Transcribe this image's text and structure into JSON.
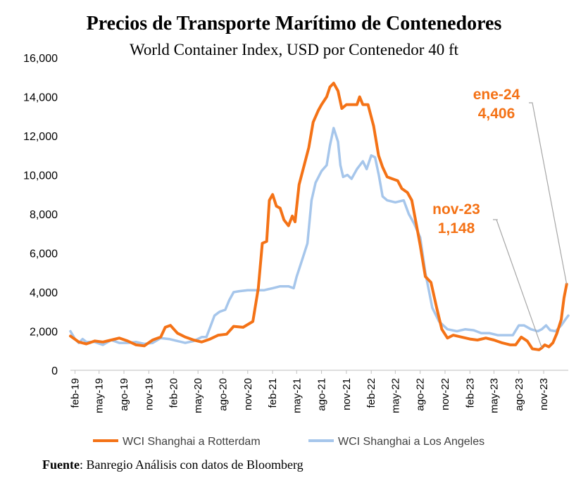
{
  "chart_data": {
    "type": "line",
    "title": "Precios de Transporte Marítimo de Contenedores",
    "subtitle": "World Container Index, USD por Contenedor 40 ft",
    "ylim": [
      0,
      16000
    ],
    "y_ticks": [
      "0",
      "2,000",
      "4,000",
      "6,000",
      "8,000",
      "10,000",
      "12,000",
      "14,000",
      "16,000"
    ],
    "x_range": [
      "2019-01-15",
      "2024-01-31"
    ],
    "x_ticks": [
      {
        "label": "feb-19",
        "date": "2019-02-01"
      },
      {
        "label": "may-19",
        "date": "2019-05-01"
      },
      {
        "label": "ago-19",
        "date": "2019-08-01"
      },
      {
        "label": "nov-19",
        "date": "2019-11-01"
      },
      {
        "label": "feb-20",
        "date": "2020-02-01"
      },
      {
        "label": "may-20",
        "date": "2020-05-01"
      },
      {
        "label": "ago-20",
        "date": "2020-08-01"
      },
      {
        "label": "nov-20",
        "date": "2020-11-01"
      },
      {
        "label": "feb-21",
        "date": "2021-02-01"
      },
      {
        "label": "may-21",
        "date": "2021-05-01"
      },
      {
        "label": "ago-21",
        "date": "2021-08-01"
      },
      {
        "label": "nov-21",
        "date": "2021-11-01"
      },
      {
        "label": "feb-22",
        "date": "2022-02-01"
      },
      {
        "label": "may-22",
        "date": "2022-05-01"
      },
      {
        "label": "ago-22",
        "date": "2022-08-01"
      },
      {
        "label": "nov-22",
        "date": "2022-11-01"
      },
      {
        "label": "feb-23",
        "date": "2023-02-01"
      },
      {
        "label": "may-23",
        "date": "2023-05-01"
      },
      {
        "label": "ago-23",
        "date": "2023-08-01"
      },
      {
        "label": "nov-23",
        "date": "2023-11-01"
      }
    ],
    "grid": false,
    "legend_position": "bottom",
    "series": [
      {
        "name": "WCI Shanghai a Rotterdam",
        "color": "#f47216",
        "points": [
          [
            "2019-01-15",
            1750
          ],
          [
            "2019-02-15",
            1450
          ],
          [
            "2019-03-15",
            1350
          ],
          [
            "2019-04-15",
            1500
          ],
          [
            "2019-05-15",
            1450
          ],
          [
            "2019-06-15",
            1550
          ],
          [
            "2019-07-15",
            1650
          ],
          [
            "2019-08-15",
            1500
          ],
          [
            "2019-09-15",
            1300
          ],
          [
            "2019-10-15",
            1250
          ],
          [
            "2019-11-15",
            1550
          ],
          [
            "2019-12-15",
            1700
          ],
          [
            "2020-01-01",
            2200
          ],
          [
            "2020-01-20",
            2300
          ],
          [
            "2020-02-15",
            1900
          ],
          [
            "2020-03-15",
            1700
          ],
          [
            "2020-04-15",
            1550
          ],
          [
            "2020-05-15",
            1450
          ],
          [
            "2020-06-15",
            1600
          ],
          [
            "2020-07-15",
            1800
          ],
          [
            "2020-08-15",
            1850
          ],
          [
            "2020-09-10",
            2250
          ],
          [
            "2020-10-15",
            2200
          ],
          [
            "2020-11-20",
            2500
          ],
          [
            "2020-12-10",
            4200
          ],
          [
            "2020-12-25",
            6500
          ],
          [
            "2021-01-10",
            6600
          ],
          [
            "2021-01-20",
            8700
          ],
          [
            "2021-02-01",
            9000
          ],
          [
            "2021-02-15",
            8400
          ],
          [
            "2021-03-01",
            8300
          ],
          [
            "2021-03-15",
            7700
          ],
          [
            "2021-04-01",
            7400
          ],
          [
            "2021-04-15",
            7900
          ],
          [
            "2021-04-25",
            7600
          ],
          [
            "2021-05-10",
            9500
          ],
          [
            "2021-05-25",
            10300
          ],
          [
            "2021-06-15",
            11400
          ],
          [
            "2021-07-01",
            12700
          ],
          [
            "2021-07-20",
            13300
          ],
          [
            "2021-08-01",
            13600
          ],
          [
            "2021-08-20",
            14000
          ],
          [
            "2021-09-01",
            14500
          ],
          [
            "2021-09-15",
            14700
          ],
          [
            "2021-10-01",
            14300
          ],
          [
            "2021-10-15",
            13400
          ],
          [
            "2021-11-01",
            13600
          ],
          [
            "2021-11-20",
            13600
          ],
          [
            "2021-12-10",
            13600
          ],
          [
            "2021-12-20",
            14000
          ],
          [
            "2022-01-01",
            13600
          ],
          [
            "2022-01-20",
            13600
          ],
          [
            "2022-02-10",
            12500
          ],
          [
            "2022-02-28",
            11000
          ],
          [
            "2022-03-15",
            10400
          ],
          [
            "2022-04-01",
            9900
          ],
          [
            "2022-04-20",
            9800
          ],
          [
            "2022-05-10",
            9700
          ],
          [
            "2022-05-25",
            9300
          ],
          [
            "2022-06-15",
            9100
          ],
          [
            "2022-07-01",
            8700
          ],
          [
            "2022-07-20",
            7300
          ],
          [
            "2022-08-01",
            6400
          ],
          [
            "2022-08-20",
            4800
          ],
          [
            "2022-09-10",
            4500
          ],
          [
            "2022-10-01",
            3200
          ],
          [
            "2022-10-20",
            2100
          ],
          [
            "2022-11-10",
            1650
          ],
          [
            "2022-12-01",
            1800
          ],
          [
            "2023-01-01",
            1700
          ],
          [
            "2023-02-01",
            1600
          ],
          [
            "2023-03-01",
            1550
          ],
          [
            "2023-04-01",
            1650
          ],
          [
            "2023-05-01",
            1550
          ],
          [
            "2023-06-01",
            1400
          ],
          [
            "2023-07-01",
            1300
          ],
          [
            "2023-07-20",
            1300
          ],
          [
            "2023-08-10",
            1700
          ],
          [
            "2023-09-01",
            1500
          ],
          [
            "2023-09-20",
            1100
          ],
          [
            "2023-10-15",
            1050
          ],
          [
            "2023-10-25",
            1148
          ],
          [
            "2023-11-05",
            1300
          ],
          [
            "2023-11-20",
            1200
          ],
          [
            "2023-12-05",
            1400
          ],
          [
            "2023-12-20",
            1900
          ],
          [
            "2024-01-05",
            2600
          ],
          [
            "2024-01-15",
            3700
          ],
          [
            "2024-01-25",
            4406
          ]
        ]
      },
      {
        "name": "WCI Shanghai a Los Angeles",
        "color": "#a6c6eb",
        "points": [
          [
            "2019-01-15",
            2000
          ],
          [
            "2019-02-01",
            1600
          ],
          [
            "2019-02-15",
            1400
          ],
          [
            "2019-03-01",
            1600
          ],
          [
            "2019-03-15",
            1450
          ],
          [
            "2019-04-15",
            1450
          ],
          [
            "2019-05-15",
            1300
          ],
          [
            "2019-06-15",
            1550
          ],
          [
            "2019-07-15",
            1400
          ],
          [
            "2019-08-15",
            1400
          ],
          [
            "2019-09-15",
            1450
          ],
          [
            "2019-10-15",
            1350
          ],
          [
            "2019-11-15",
            1400
          ],
          [
            "2019-12-15",
            1650
          ],
          [
            "2020-01-15",
            1600
          ],
          [
            "2020-02-15",
            1500
          ],
          [
            "2020-03-15",
            1400
          ],
          [
            "2020-04-15",
            1500
          ],
          [
            "2020-05-15",
            1700
          ],
          [
            "2020-06-01",
            1700
          ],
          [
            "2020-06-15",
            2200
          ],
          [
            "2020-07-01",
            2800
          ],
          [
            "2020-07-20",
            3000
          ],
          [
            "2020-08-10",
            3100
          ],
          [
            "2020-08-25",
            3600
          ],
          [
            "2020-09-10",
            4000
          ],
          [
            "2020-10-01",
            4050
          ],
          [
            "2020-11-01",
            4100
          ],
          [
            "2020-12-01",
            4100
          ],
          [
            "2021-01-01",
            4100
          ],
          [
            "2021-02-01",
            4200
          ],
          [
            "2021-03-01",
            4300
          ],
          [
            "2021-04-01",
            4300
          ],
          [
            "2021-04-20",
            4200
          ],
          [
            "2021-05-01",
            4800
          ],
          [
            "2021-05-20",
            5600
          ],
          [
            "2021-06-10",
            6500
          ],
          [
            "2021-06-25",
            8700
          ],
          [
            "2021-07-10",
            9600
          ],
          [
            "2021-08-01",
            10200
          ],
          [
            "2021-08-20",
            10500
          ],
          [
            "2021-09-01",
            11500
          ],
          [
            "2021-09-15",
            12400
          ],
          [
            "2021-10-01",
            11700
          ],
          [
            "2021-10-10",
            10500
          ],
          [
            "2021-10-20",
            9900
          ],
          [
            "2021-11-05",
            10000
          ],
          [
            "2021-11-20",
            9800
          ],
          [
            "2021-12-10",
            10300
          ],
          [
            "2022-01-01",
            10700
          ],
          [
            "2022-01-15",
            10300
          ],
          [
            "2022-02-01",
            11000
          ],
          [
            "2022-02-15",
            10900
          ],
          [
            "2022-03-01",
            10000
          ],
          [
            "2022-03-15",
            8900
          ],
          [
            "2022-04-01",
            8700
          ],
          [
            "2022-05-01",
            8600
          ],
          [
            "2022-06-01",
            8700
          ],
          [
            "2022-06-20",
            8000
          ],
          [
            "2022-07-10",
            7500
          ],
          [
            "2022-08-01",
            6800
          ],
          [
            "2022-08-20",
            5000
          ],
          [
            "2022-09-15",
            3200
          ],
          [
            "2022-10-10",
            2500
          ],
          [
            "2022-11-10",
            2100
          ],
          [
            "2022-12-15",
            2000
          ],
          [
            "2023-01-15",
            2100
          ],
          [
            "2023-02-15",
            2050
          ],
          [
            "2023-03-15",
            1900
          ],
          [
            "2023-04-15",
            1900
          ],
          [
            "2023-05-15",
            1800
          ],
          [
            "2023-06-15",
            1800
          ],
          [
            "2023-07-10",
            1800
          ],
          [
            "2023-08-01",
            2300
          ],
          [
            "2023-08-20",
            2300
          ],
          [
            "2023-09-15",
            2100
          ],
          [
            "2023-10-10",
            2000
          ],
          [
            "2023-10-25",
            2100
          ],
          [
            "2023-11-10",
            2300
          ],
          [
            "2023-11-25",
            2050
          ],
          [
            "2023-12-15",
            2000
          ],
          [
            "2024-01-05",
            2300
          ],
          [
            "2024-01-20",
            2600
          ],
          [
            "2024-01-31",
            2800
          ]
        ]
      }
    ],
    "annotations": [
      {
        "label_top": "ene-24",
        "label_bottom": "4,406",
        "date": "2024-01-25",
        "value": 4406,
        "color": "#f47216"
      },
      {
        "label_top": "nov-23",
        "label_bottom": "1,148",
        "date": "2023-10-25",
        "value": 1148,
        "color": "#f47216"
      }
    ]
  },
  "source": {
    "label": "Fuente",
    "text": ": Banregio Análisis con datos de Bloomberg"
  }
}
